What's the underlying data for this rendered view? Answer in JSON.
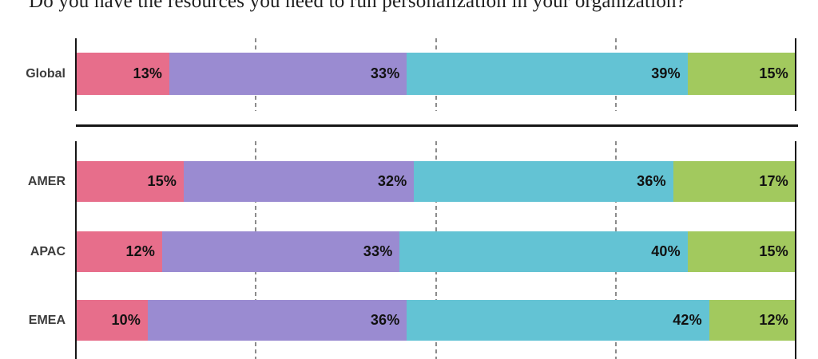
{
  "title": "Do you have the resources you need to run personalization in your organization?",
  "colors": {
    "segment_1": "#E76E8B",
    "segment_2": "#9A8BD1",
    "segment_3": "#63C3D4",
    "segment_4": "#A2C95E",
    "axis_line": "#161616",
    "gridline": "#8c8c8c",
    "row_label": "#3d3d3d",
    "value_label": "#111111"
  },
  "chart_data": {
    "type": "bar",
    "orientation": "horizontal",
    "stacked": true,
    "unit": "%",
    "title": "Do you have the resources you need to run personalization in your organization?",
    "xlim": [
      0,
      100
    ],
    "gridlines_at": [
      25,
      50,
      75
    ],
    "grid_style": "dashed",
    "legend": "none",
    "series_colors": [
      "#E76E8B",
      "#9A8BD1",
      "#63C3D4",
      "#A2C95E"
    ],
    "groups": [
      {
        "name": "global",
        "rows": [
          {
            "label": "Global",
            "values": [
              13,
              33,
              39,
              15
            ]
          }
        ]
      },
      {
        "name": "regions",
        "rows": [
          {
            "label": "AMER",
            "values": [
              15,
              32,
              36,
              17
            ]
          },
          {
            "label": "APAC",
            "values": [
              12,
              33,
              40,
              15
            ]
          },
          {
            "label": "EMEA",
            "values": [
              10,
              36,
              42,
              12
            ]
          }
        ]
      }
    ]
  }
}
